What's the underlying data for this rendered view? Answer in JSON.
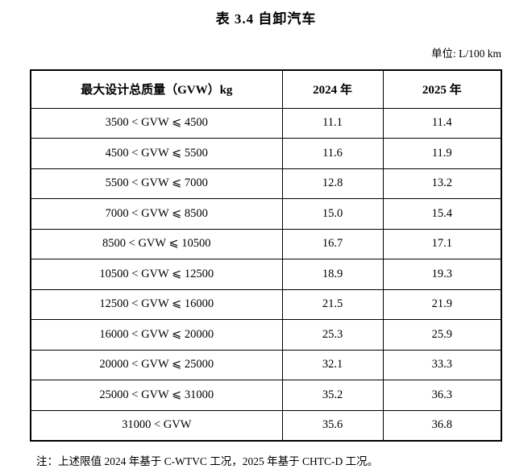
{
  "title": "表 3.4 自卸汽车",
  "unit_note": "单位: L/100 km",
  "table": {
    "headers": [
      "最大设计总质量（GVW）kg",
      "2024 年",
      "2025 年"
    ],
    "rows": [
      {
        "gvw_range": "3500 < GVW ⩽ 4500",
        "y2024": "11.1",
        "y2025": "11.4"
      },
      {
        "gvw_range": "4500 < GVW ⩽ 5500",
        "y2024": "11.6",
        "y2025": "11.9"
      },
      {
        "gvw_range": "5500 < GVW ⩽ 7000",
        "y2024": "12.8",
        "y2025": "13.2"
      },
      {
        "gvw_range": "7000 < GVW ⩽ 8500",
        "y2024": "15.0",
        "y2025": "15.4"
      },
      {
        "gvw_range": "8500 < GVW ⩽ 10500",
        "y2024": "16.7",
        "y2025": "17.1"
      },
      {
        "gvw_range": "10500 < GVW ⩽ 12500",
        "y2024": "18.9",
        "y2025": "19.3"
      },
      {
        "gvw_range": "12500 < GVW ⩽ 16000",
        "y2024": "21.5",
        "y2025": "21.9"
      },
      {
        "gvw_range": "16000 < GVW ⩽ 20000",
        "y2024": "25.3",
        "y2025": "25.9"
      },
      {
        "gvw_range": "20000 < GVW ⩽ 25000",
        "y2024": "32.1",
        "y2025": "33.3"
      },
      {
        "gvw_range": "25000 < GVW ⩽ 31000",
        "y2024": "35.2",
        "y2025": "36.3"
      },
      {
        "gvw_range": "31000 < GVW",
        "y2024": "35.6",
        "y2025": "36.8"
      }
    ]
  },
  "footnote": "注：上述限值 2024 年基于 C-WTVC 工况，2025 年基于 CHTC-D 工况。",
  "colors": {
    "text": "#000000",
    "border": "#000000",
    "background": "#ffffff"
  }
}
